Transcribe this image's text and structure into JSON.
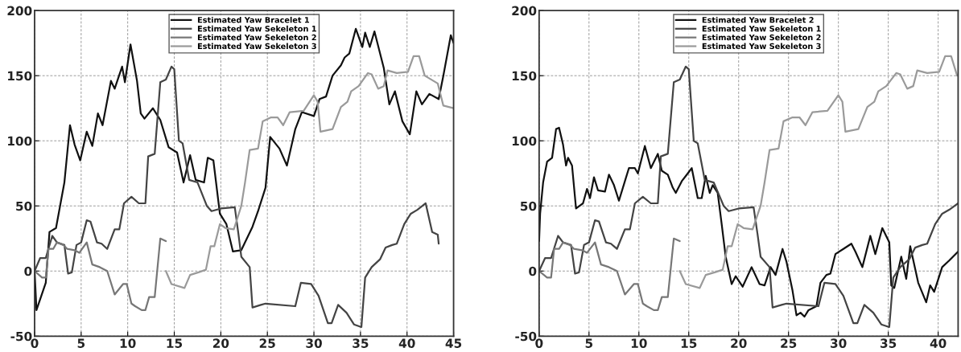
{
  "chart_data": [
    {
      "type": "line",
      "xlim": [
        0,
        45
      ],
      "ylim": [
        -50,
        200
      ],
      "xticks": [
        0,
        5,
        10,
        15,
        20,
        25,
        30,
        35,
        40,
        45
      ],
      "yticks": [
        -50,
        0,
        50,
        100,
        150,
        200
      ],
      "grid": true,
      "legend": "top",
      "series": [
        {
          "name": "Estimated Yaw Bracelet 1",
          "color": "#111111",
          "x": [
            0,
            0.2,
            1.2,
            1.6,
            2.3,
            3.2,
            3.8,
            4.3,
            4.9,
            5.6,
            6.2,
            6.8,
            7.3,
            8.2,
            8.6,
            9.4,
            9.7,
            10.3,
            11.0,
            11.4,
            11.8,
            12.7,
            13.5,
            14.4,
            15.3,
            16.0,
            16.7,
            17.3,
            18.2,
            18.6,
            19.2,
            19.9,
            20.6,
            21.3,
            22.2,
            23.4,
            24.0,
            24.8,
            25.3,
            26.3,
            27.1,
            28.0,
            28.7,
            30.0,
            30.6,
            31.3,
            32.0,
            32.9,
            33.3,
            33.8,
            34.5,
            35.2,
            35.5,
            36.0,
            36.5,
            37.5,
            38.1,
            38.7,
            39.5,
            40.3,
            41.0,
            41.6,
            42.4,
            43.4,
            43.9,
            44.7,
            45.0
          ],
          "values": [
            0,
            -30,
            -9,
            30,
            33,
            68,
            112,
            97,
            85,
            107,
            96,
            121,
            112,
            146,
            140,
            157,
            145,
            174,
            146,
            121,
            117,
            125,
            116,
            95,
            91,
            68,
            89,
            70,
            68,
            87,
            85,
            44,
            36,
            15,
            16,
            34,
            46,
            64,
            103,
            94,
            81,
            109,
            122,
            119,
            132,
            134,
            150,
            158,
            164,
            167,
            186,
            172,
            183,
            172,
            184,
            156,
            128,
            138,
            115,
            105,
            138,
            128,
            136,
            132,
            150,
            181,
            175
          ]
        },
        {
          "name": "Estimated Yaw Sekeleton 1",
          "color": "#444444",
          "x": [
            0,
            0.6,
            1.2,
            1.9,
            2.4,
            3.2,
            3.6,
            4.0,
            4.5,
            5.0,
            5.6,
            6.0,
            6.7,
            7.2,
            7.8,
            8.6,
            9.1,
            9.6,
            10.4,
            11.2,
            11.9,
            12.2,
            12.9,
            13.5,
            14.1,
            14.7,
            15.0,
            15.5,
            15.9,
            16.6,
            17.5,
            18.5,
            19.0,
            20.0,
            21.5,
            21.9,
            22.2,
            23.1,
            23.4,
            24.3,
            24.8,
            28.0,
            28.6,
            29.7,
            30.5,
            31.5,
            31.9,
            32.6,
            33.5,
            34.3,
            35.1,
            35.5,
            36.2,
            37.1,
            37.7,
            38.4,
            38.9,
            39.7,
            40.4,
            41.1,
            42.0,
            42.7,
            43.3,
            43.4
          ],
          "values": [
            0,
            10,
            10,
            27,
            22,
            20,
            -2,
            -1,
            20,
            22,
            39,
            38,
            22,
            21,
            17,
            32,
            32,
            52,
            57,
            52,
            52,
            88,
            90,
            145,
            147,
            157,
            155,
            100,
            98,
            70,
            68,
            50,
            46,
            48,
            49,
            28,
            11,
            3,
            -28,
            -26,
            -25,
            -27,
            -9,
            -10,
            -19,
            -40,
            -40,
            -26,
            -32,
            -41,
            -43,
            -5,
            3,
            9,
            18,
            20,
            21,
            36,
            44,
            47,
            52,
            30,
            28,
            21
          ]
        },
        {
          "name": "Estimated Yaw Sekeleton 2",
          "color": "#777777",
          "x": [
            0,
            0.8,
            1.2,
            1.5,
            2.0,
            2.4,
            3.1,
            3.5,
            4.3,
            4.8,
            5.6,
            6.2,
            7.0,
            7.8,
            8.6,
            9.5,
            9.9,
            10.4,
            10.8,
            11.5,
            11.9,
            12.3,
            12.9,
            13.5,
            14.1
          ],
          "values": [
            0,
            -5,
            -5,
            17,
            17,
            22,
            20,
            17,
            16,
            14,
            22,
            5,
            3,
            0,
            -18,
            -10,
            -10,
            -25,
            -27,
            -30,
            -30,
            -20,
            -20,
            25,
            23
          ]
        },
        {
          "name": "Estimated Yaw Sekeleton 3",
          "color": "#9a9a9a",
          "x": [
            14.1,
            14.7,
            16.1,
            16.7,
            17.6,
            18.4,
            18.9,
            19.3,
            19.9,
            20.5,
            21.4,
            22.2,
            22.6,
            23.1,
            24.0,
            24.5,
            25.4,
            26.1,
            26.7,
            27.4,
            28.9,
            30.0,
            30.4,
            30.7,
            32.0,
            32.9,
            33.6,
            34.0,
            34.8,
            35.8,
            36.2,
            36.9,
            37.5,
            37.9,
            38.9,
            40.1,
            40.7,
            41.3,
            41.9,
            43.3,
            43.9,
            45.0
          ],
          "values": [
            0,
            -10,
            -13,
            -3,
            -1,
            1,
            19,
            19,
            36,
            33,
            32,
            50,
            68,
            93,
            94,
            115,
            118,
            118,
            112,
            122,
            123,
            135,
            130,
            107,
            109,
            126,
            130,
            138,
            142,
            152,
            151,
            140,
            142,
            154,
            152,
            153,
            165,
            165,
            150,
            144,
            127,
            125
          ]
        }
      ]
    },
    {
      "type": "line",
      "xlim": [
        0,
        42
      ],
      "ylim": [
        -50,
        200
      ],
      "xticks": [
        0,
        5,
        10,
        15,
        20,
        25,
        30,
        35,
        40
      ],
      "yticks": [
        -50,
        0,
        50,
        100,
        150,
        200
      ],
      "grid": true,
      "legend": "top",
      "series": [
        {
          "name": "Estimated Yaw Bracelet 2",
          "color": "#111111",
          "x": [
            0,
            0.1,
            0.4,
            0.8,
            1.3,
            1.7,
            2.0,
            2.4,
            2.7,
            2.9,
            3.3,
            3.7,
            4.4,
            4.8,
            5.1,
            5.5,
            5.9,
            6.6,
            7.0,
            7.5,
            8.0,
            8.6,
            9.0,
            9.6,
            9.9,
            10.6,
            11.2,
            11.9,
            12.3,
            12.9,
            13.4,
            13.7,
            14.3,
            14.7,
            15.3,
            15.9,
            16.3,
            16.7,
            17.1,
            17.4,
            17.9,
            18.3,
            18.7,
            19.3,
            19.7,
            20.4,
            21.3,
            22.1,
            22.6,
            23.2,
            23.7,
            24.4,
            24.8,
            25.4,
            25.8,
            26.2,
            26.6,
            27.0,
            27.8,
            28.2,
            28.8,
            29.2,
            29.7,
            30.5,
            31.3,
            31.7,
            32.4,
            33.2,
            33.7,
            34.4,
            35.1,
            35.3,
            35.6,
            36.3,
            36.8,
            37.2,
            38.0,
            38.8,
            39.2,
            39.6,
            40.4,
            41.1,
            42.0
          ],
          "values": [
            23,
            44,
            68,
            84,
            87,
            109,
            110,
            97,
            81,
            87,
            81,
            48,
            52,
            63,
            56,
            72,
            62,
            61,
            74,
            66,
            54,
            69,
            79,
            79,
            75,
            96,
            79,
            90,
            77,
            74,
            64,
            60,
            69,
            73,
            79,
            56,
            56,
            73,
            60,
            66,
            60,
            36,
            11,
            -10,
            -4,
            -12,
            3,
            -10,
            -11,
            3,
            -3,
            17,
            7,
            -15,
            -34,
            -32,
            -35,
            -30,
            -27,
            -9,
            -3,
            -2,
            13,
            17,
            21,
            15,
            3,
            27,
            13,
            33,
            22,
            -11,
            -13,
            11,
            -6,
            19,
            -9,
            -24,
            -11,
            -16,
            3,
            8,
            15
          ]
        },
        {
          "name": "Estimated Yaw Sekeleton 1",
          "color": "#444444",
          "x": [
            0,
            0.6,
            1.2,
            1.9,
            2.4,
            3.2,
            3.6,
            4.0,
            4.5,
            5.0,
            5.6,
            6.0,
            6.7,
            7.2,
            7.8,
            8.6,
            9.1,
            9.6,
            10.4,
            11.2,
            11.9,
            12.2,
            12.9,
            13.5,
            14.1,
            14.7,
            15.0,
            15.5,
            15.9,
            16.6,
            17.5,
            18.5,
            19.0,
            20.0,
            21.5,
            21.9,
            22.2,
            23.1,
            23.4,
            24.3,
            24.8,
            28.0,
            28.6,
            29.7,
            30.5,
            31.5,
            31.9,
            32.6,
            33.5,
            34.3,
            35.1,
            35.5,
            36.2,
            37.1,
            37.7,
            38.4,
            38.9,
            39.7,
            40.4,
            41.1,
            42.0
          ],
          "values": [
            0,
            10,
            10,
            27,
            22,
            20,
            -2,
            -1,
            20,
            22,
            39,
            38,
            22,
            21,
            17,
            32,
            32,
            52,
            57,
            52,
            52,
            88,
            90,
            145,
            147,
            157,
            155,
            100,
            98,
            70,
            68,
            50,
            46,
            48,
            49,
            28,
            11,
            3,
            -28,
            -26,
            -25,
            -27,
            -9,
            -10,
            -19,
            -40,
            -40,
            -26,
            -32,
            -41,
            -43,
            -5,
            3,
            9,
            18,
            20,
            21,
            36,
            44,
            47,
            52
          ]
        },
        {
          "name": "Estimated Yaw Sekeleton 2",
          "color": "#777777",
          "x": [
            0,
            0.8,
            1.2,
            1.5,
            2.0,
            2.4,
            3.1,
            3.5,
            4.3,
            4.8,
            5.6,
            6.2,
            7.0,
            7.8,
            8.6,
            9.5,
            9.9,
            10.4,
            10.8,
            11.5,
            11.9,
            12.3,
            12.9,
            13.5,
            14.1
          ],
          "values": [
            0,
            -5,
            -5,
            17,
            17,
            22,
            20,
            17,
            16,
            14,
            22,
            5,
            3,
            0,
            -18,
            -10,
            -10,
            -25,
            -27,
            -30,
            -30,
            -20,
            -20,
            25,
            23
          ]
        },
        {
          "name": "Estimated Yaw Sekeleton 3",
          "color": "#9a9a9a",
          "x": [
            14.1,
            14.7,
            16.1,
            16.7,
            17.6,
            18.4,
            18.9,
            19.3,
            19.9,
            20.5,
            21.4,
            22.2,
            22.6,
            23.1,
            24.0,
            24.5,
            25.4,
            26.1,
            26.7,
            27.4,
            28.9,
            30.0,
            30.4,
            30.7,
            32.0,
            32.9,
            33.6,
            34.0,
            34.8,
            35.8,
            36.2,
            36.9,
            37.5,
            37.9,
            38.9,
            40.1,
            40.7,
            41.3,
            41.9
          ],
          "values": [
            0,
            -10,
            -13,
            -3,
            -1,
            1,
            19,
            19,
            36,
            33,
            32,
            50,
            68,
            93,
            94,
            115,
            118,
            118,
            112,
            122,
            123,
            135,
            130,
            107,
            109,
            126,
            130,
            138,
            142,
            152,
            151,
            140,
            142,
            154,
            152,
            153,
            165,
            165,
            150
          ]
        }
      ]
    }
  ]
}
